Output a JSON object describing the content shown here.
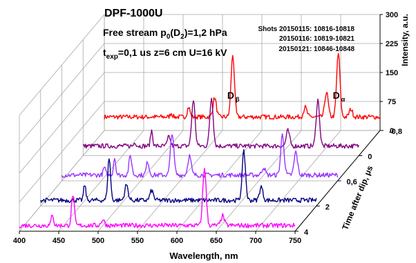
{
  "chart_data": {
    "type": "line",
    "title": "DPF-1000U",
    "annotations": [
      {
        "text": "Free stream p",
        "sub": "0",
        "text2": "(D",
        "sub2": "2",
        "text3": ")=1,2 hPa"
      },
      {
        "text": "t",
        "sub": "exp",
        "text2": "=0,1 us z=6 cm U=16 kV"
      }
    ],
    "shots": [
      "Shots 20150115: 10816-10818",
      "20150116: 10819-10821",
      "20150121: 10846-10848"
    ],
    "peak_labels": [
      {
        "text": "D",
        "sub": "β",
        "x": 563
      },
      {
        "text": "D",
        "sub": "α",
        "x": 697
      }
    ],
    "xlabel": "Wavelength, nm",
    "ylabel": "Time after dip, μs",
    "zlabel": "Intensity, a.u.",
    "xlim": [
      400,
      750
    ],
    "x_ticks": [
      "400",
      "450",
      "500",
      "550",
      "600",
      "650",
      "700",
      "750"
    ],
    "z_ticks": [
      "0",
      "75",
      "150",
      "225",
      "300"
    ],
    "zlim": [
      0,
      300
    ],
    "y_ticks": [
      "-0,8",
      "0",
      "0,6",
      "2",
      "4"
    ],
    "grid": true,
    "series": [
      {
        "name": "-0,8",
        "color": "#ff0000",
        "baseline": 35,
        "peaks": [
          [
            485,
            10,
            2
          ],
          [
            507,
            25,
            2.5
          ],
          [
            540,
            50,
            3
          ],
          [
            563,
            160,
            3
          ],
          [
            655,
            25,
            3
          ],
          [
            682,
            65,
            3
          ],
          [
            697,
            165,
            3
          ],
          [
            713,
            20,
            3
          ]
        ]
      },
      {
        "name": "0",
        "color": "#800080",
        "baseline": 25,
        "peaks": [
          [
            466,
            10,
            2
          ],
          [
            487,
            40,
            2
          ],
          [
            509,
            25,
            2.5
          ],
          [
            540,
            120,
            3
          ],
          [
            563,
            125,
            3
          ],
          [
            660,
            40,
            3
          ],
          [
            698,
            120,
            3
          ]
        ]
      },
      {
        "name": "0,6",
        "color": "#9933ff",
        "baseline": 15,
        "peaks": [
          [
            454,
            20,
            2
          ],
          [
            467,
            45,
            2
          ],
          [
            487,
            50,
            2.5
          ],
          [
            509,
            35,
            2.5
          ],
          [
            540,
            110,
            3
          ],
          [
            562,
            50,
            3
          ],
          [
            656,
            20,
            3
          ],
          [
            680,
            105,
            3
          ],
          [
            697,
            60,
            3
          ]
        ]
      },
      {
        "name": "2",
        "color": "#000080",
        "baseline": 15,
        "peaks": [
          [
            456,
            40,
            2
          ],
          [
            487,
            110,
            2.5
          ],
          [
            509,
            40,
            3
          ],
          [
            541,
            25,
            3
          ],
          [
            658,
            125,
            3
          ],
          [
            680,
            35,
            3
          ]
        ]
      },
      {
        "name": "4",
        "color": "#ff00ff",
        "baseline": 15,
        "peaks": [
          [
            442,
            30,
            2
          ],
          [
            468,
            80,
            2.5
          ],
          [
            506,
            15,
            3
          ],
          [
            635,
            150,
            3
          ],
          [
            658,
            25,
            3
          ]
        ]
      }
    ],
    "noise_level": 6
  }
}
